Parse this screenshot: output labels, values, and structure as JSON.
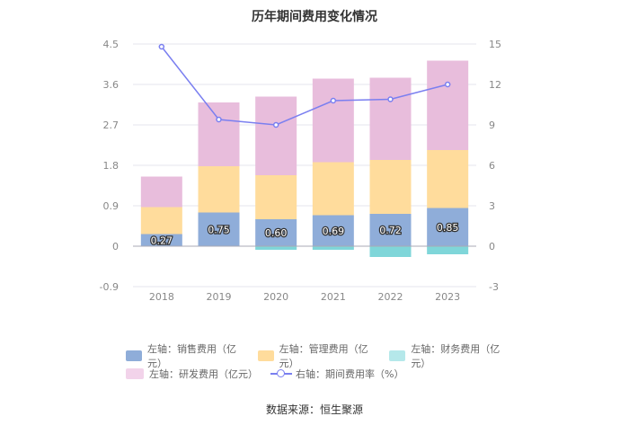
{
  "chart_data": {
    "type": "bar",
    "title": "历年期间费用变化情况",
    "categories": [
      "2018",
      "2019",
      "2020",
      "2021",
      "2022",
      "2023"
    ],
    "left_axis": {
      "ticks": [
        "4.5",
        "3.6",
        "2.7",
        "1.8",
        "0.9",
        "0",
        "-0.9"
      ],
      "range": [
        -0.9,
        4.5
      ]
    },
    "right_axis": {
      "ticks": [
        "15",
        "12",
        "9",
        "6",
        "3",
        "0",
        "-3"
      ],
      "range": [
        -3,
        15
      ]
    },
    "series": [
      {
        "name": "左轴：销售费用（亿元）",
        "axis": "left",
        "stack": "pos",
        "color": "#8fadd9",
        "values": [
          0.27,
          0.75,
          0.6,
          0.69,
          0.72,
          0.85
        ],
        "labels": [
          "0.27",
          "0.75",
          "0.60",
          "0.69",
          "0.72",
          "0.85"
        ]
      },
      {
        "name": "左轴：管理费用（亿元）",
        "axis": "left",
        "stack": "pos",
        "color": "#ffdc9c",
        "values": [
          0.6,
          1.03,
          0.98,
          1.18,
          1.2,
          1.29
        ]
      },
      {
        "name": "左轴：财务费用（亿元）",
        "axis": "left",
        "stack": "neg",
        "color": "#7fd6d9",
        "values": [
          0.0,
          0.0,
          -0.08,
          -0.08,
          -0.24,
          -0.18
        ]
      },
      {
        "name": "左轴：研发费用（亿元）",
        "axis": "left",
        "stack": "pos",
        "color": "#e8bddc",
        "values": [
          0.68,
          1.42,
          1.75,
          1.86,
          1.83,
          1.99
        ]
      },
      {
        "name": "右轴：期间费用率（%）",
        "axis": "right",
        "type": "line",
        "color": "#7a7ff0",
        "values": [
          14.8,
          9.4,
          9.0,
          10.8,
          10.9,
          12.0
        ]
      }
    ],
    "legend_position": "bottom",
    "grid": true
  },
  "source": "数据来源：恒生聚源"
}
